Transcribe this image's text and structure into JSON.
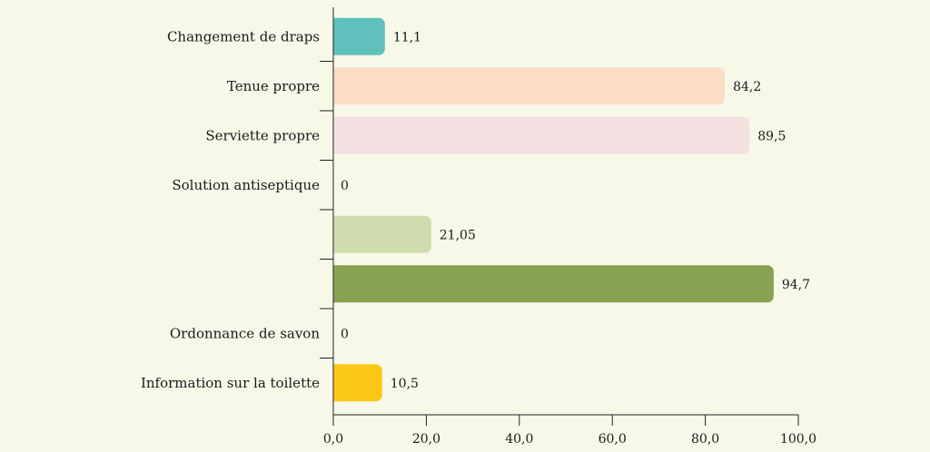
{
  "chart_data": {
    "type": "bar",
    "orientation": "horizontal",
    "categories": [
      "Changement de draps",
      "Tenue propre",
      "Serviette propre",
      "Solution antiseptique",
      "",
      "",
      "Ordonnance de savon",
      "Information sur la toilette"
    ],
    "values": [
      11.1,
      84.2,
      89.5,
      0,
      21.05,
      94.7,
      0,
      10.5
    ],
    "value_labels": [
      "11,1",
      "84,2",
      "89,5",
      "0",
      "21,05",
      "94,7",
      "0",
      "10,5"
    ],
    "colors": [
      "#5fc0bc",
      "#fbdcc4",
      "#f4e1e1",
      "#cccccc",
      "#cfdcad",
      "#87a250",
      "#cccccc",
      "#fcc717"
    ],
    "xlim": [
      0,
      100
    ],
    "xticks": [
      0,
      20,
      40,
      60,
      80,
      100
    ],
    "xtick_labels": [
      "0,0",
      "20,0",
      "40,0",
      "60,0",
      "80,0",
      "100,0"
    ],
    "grid": false,
    "legend": "none"
  }
}
